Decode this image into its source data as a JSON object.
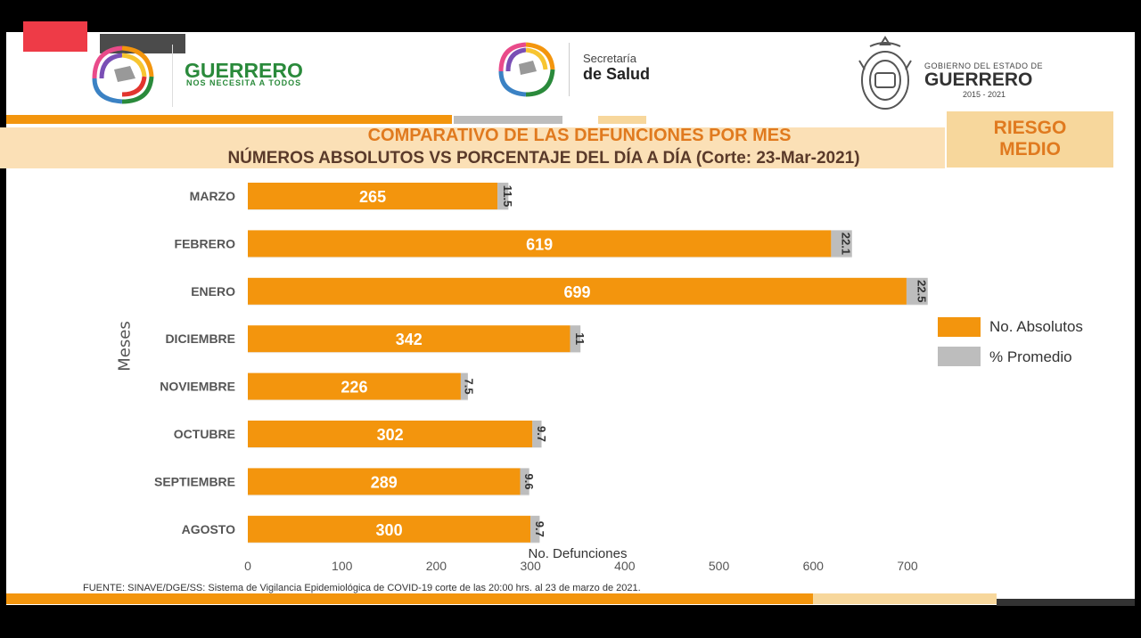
{
  "header": {
    "left_logo_title": "GUERRERO",
    "left_logo_subtitle": "NOS NECESITA A TODOS",
    "center_logo_line1": "Secretaría",
    "center_logo_line2": "de Salud",
    "right_logo_line1": "GOBIERNO DEL ESTADO DE",
    "right_logo_line2": "GUERRERO",
    "right_logo_years": "2015 - 2021"
  },
  "risk_label_line1": "RIESGO",
  "risk_label_line2": "MEDIO",
  "colors": {
    "absolute": "#f3950d",
    "percent": "#bdbdbd",
    "title_orange": "#e07a1f",
    "title_band": "#fbe0b6"
  },
  "chart_data": {
    "type": "bar",
    "orientation": "horizontal",
    "title": "COMPARATIVO DE LAS DEFUNCIONES POR MES",
    "subtitle": "NÚMEROS ABSOLUTOS VS PORCENTAJE DEL DÍA A DÍA   (Corte: 23-Mar-2021)",
    "xlabel": "No. Defunciones",
    "ylabel": "Meses",
    "xlim": [
      0,
      700
    ],
    "xticks": [
      0,
      100,
      200,
      300,
      400,
      500,
      600,
      700
    ],
    "categories": [
      "MARZO",
      "FEBRERO",
      "ENERO",
      "DICIEMBRE",
      "NOVIEMBRE",
      "OCTUBRE",
      "SEPTIEMBRE",
      "AGOSTO"
    ],
    "series": [
      {
        "name": "No. Absolutos",
        "values": [
          265,
          619,
          699,
          342,
          226,
          302,
          289,
          300
        ]
      },
      {
        "name": "% Promedio",
        "values": [
          11.5,
          22.1,
          22.5,
          11,
          7.5,
          9.7,
          9.6,
          9.7
        ]
      }
    ],
    "stacked": true,
    "legend": "right"
  },
  "source": "FUENTE: SINAVE/DGE/SS: Sistema de Vigilancia Epidemiológica de COVID-19 corte de las 20:00 hrs. al 23 de  marzo de 2021."
}
